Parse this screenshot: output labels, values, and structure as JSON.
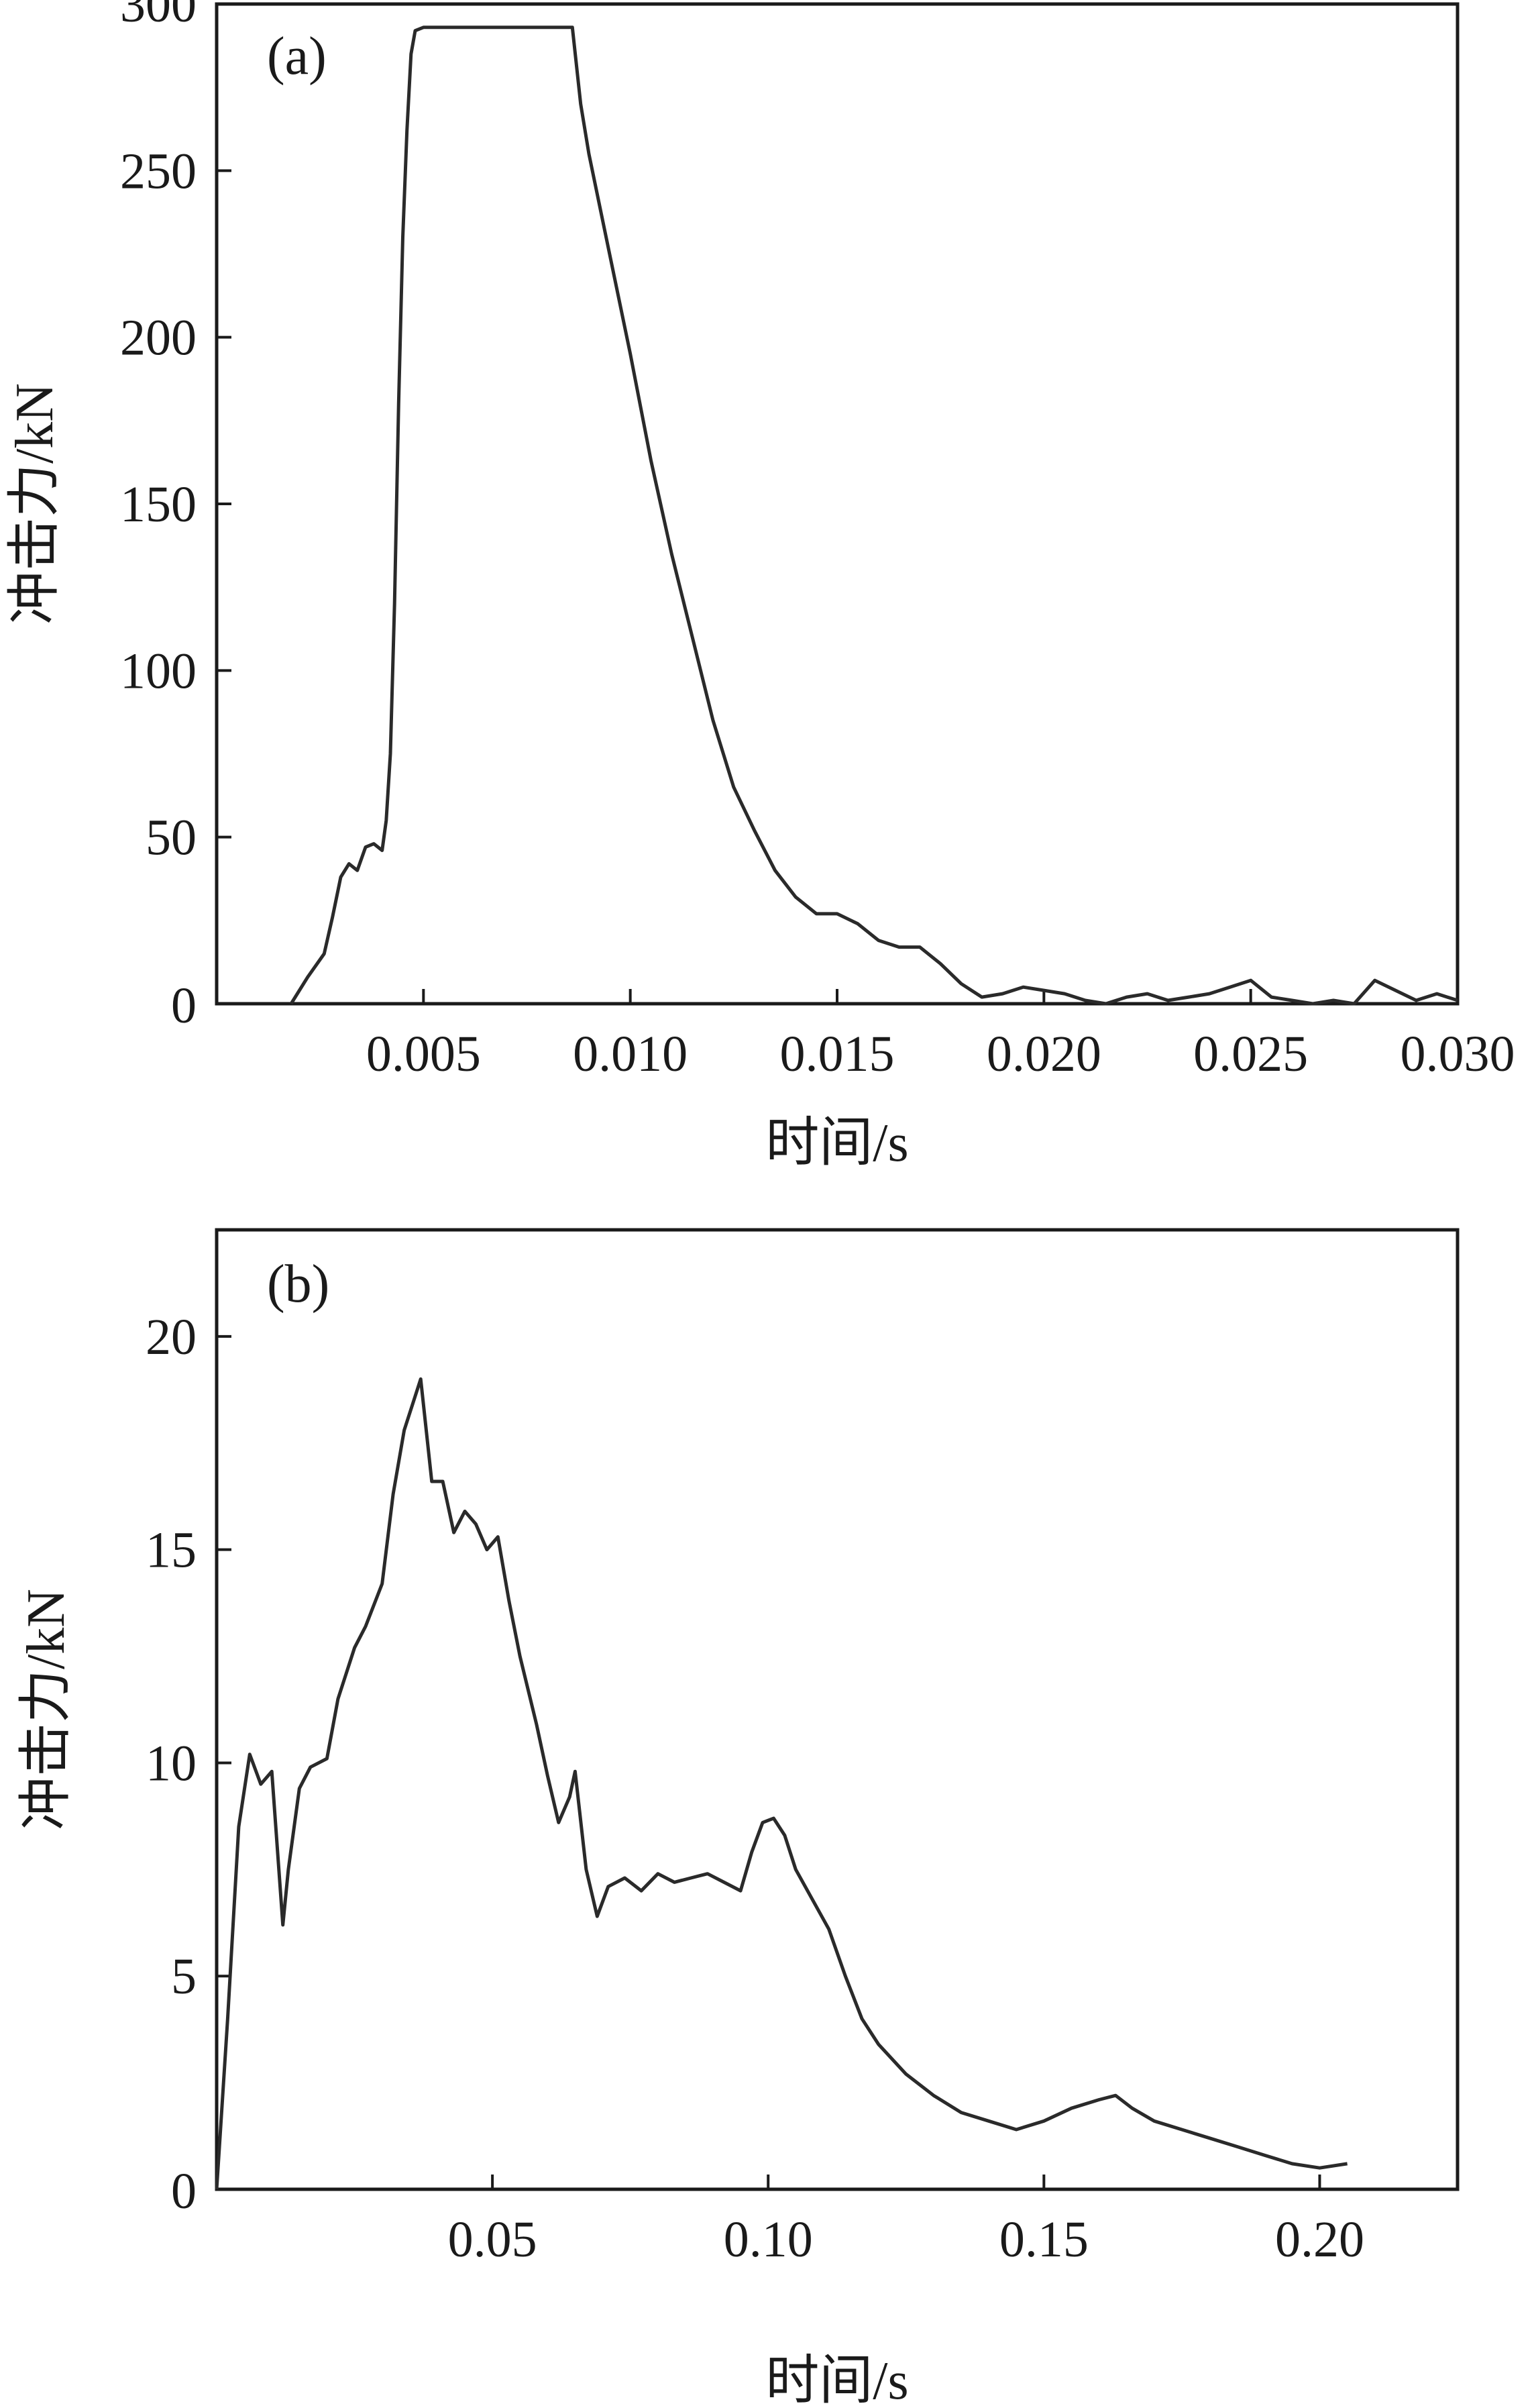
{
  "chart_data": [
    {
      "type": "line",
      "panel_label": "(a)",
      "title": "",
      "xlabel": "时间/s",
      "ylabel": "冲击力/kN",
      "xlim": [
        0,
        0.03
      ],
      "ylim": [
        0,
        300
      ],
      "x_ticks": [
        0.005,
        0.01,
        0.015,
        0.02,
        0.025,
        0.03
      ],
      "x_tick_labels": [
        "0.005",
        "0.010",
        "0.015",
        "0.020",
        "0.025",
        "0.030"
      ],
      "y_ticks": [
        0,
        50,
        100,
        150,
        200,
        250,
        300
      ],
      "y_tick_labels": [
        "0",
        "50",
        "100",
        "150",
        "200",
        "250",
        "300"
      ],
      "grid": false,
      "series": [
        {
          "x": [
            0.0018,
            0.0022,
            0.0026,
            0.0028,
            0.003,
            0.0032,
            0.0034,
            0.0036,
            0.0038,
            0.004,
            0.0041,
            0.0042,
            0.0043,
            0.0044,
            0.0045,
            0.0046,
            0.0047,
            0.0048,
            0.005,
            0.006,
            0.007,
            0.008,
            0.0086,
            0.0088,
            0.009,
            0.0095,
            0.01,
            0.0105,
            0.011,
            0.0115,
            0.012,
            0.0125,
            0.013,
            0.0135,
            0.014,
            0.0145,
            0.015,
            0.0155,
            0.016,
            0.0165,
            0.017,
            0.0175,
            0.018,
            0.0185,
            0.019,
            0.0195,
            0.02,
            0.0205,
            0.021,
            0.0215,
            0.022,
            0.0225,
            0.023,
            0.0235,
            0.024,
            0.0245,
            0.025,
            0.0255,
            0.026,
            0.0265,
            0.027,
            0.0275,
            0.028,
            0.0285,
            0.029,
            0.0295,
            0.03
          ],
          "y": [
            0,
            8,
            15,
            26,
            38,
            42,
            40,
            47,
            48,
            46,
            55,
            75,
            120,
            180,
            230,
            262,
            285,
            292,
            293,
            293,
            293,
            293,
            293,
            270,
            255,
            225,
            195,
            163,
            135,
            110,
            85,
            65,
            52,
            40,
            32,
            27,
            27,
            24,
            19,
            17,
            17,
            12,
            6,
            2,
            3,
            5,
            4,
            3,
            1,
            0,
            2,
            3,
            1,
            2,
            3,
            5,
            7,
            2,
            1,
            0,
            1,
            0,
            7,
            4,
            1,
            3,
            1
          ]
        }
      ]
    },
    {
      "type": "line",
      "panel_label": "(b)",
      "title": "",
      "xlabel": "时间/s",
      "ylabel": "冲击力/kN",
      "xlim": [
        0,
        0.225
      ],
      "ylim": [
        0,
        22.5
      ],
      "x_ticks": [
        0.05,
        0.1,
        0.15,
        0.2
      ],
      "x_tick_labels": [
        "0.05",
        "0.10",
        "0.15",
        "0.20"
      ],
      "y_ticks": [
        0,
        5,
        10,
        15,
        20
      ],
      "y_tick_labels": [
        "0",
        "5",
        "10",
        "15",
        "20"
      ],
      "grid": false,
      "series": [
        {
          "x": [
            0.0,
            0.002,
            0.004,
            0.006,
            0.008,
            0.01,
            0.012,
            0.013,
            0.015,
            0.017,
            0.02,
            0.022,
            0.025,
            0.027,
            0.03,
            0.032,
            0.034,
            0.036,
            0.037,
            0.039,
            0.041,
            0.043,
            0.045,
            0.047,
            0.049,
            0.051,
            0.053,
            0.055,
            0.058,
            0.06,
            0.062,
            0.064,
            0.065,
            0.067,
            0.069,
            0.071,
            0.074,
            0.077,
            0.08,
            0.083,
            0.086,
            0.089,
            0.092,
            0.095,
            0.097,
            0.099,
            0.101,
            0.103,
            0.105,
            0.108,
            0.111,
            0.114,
            0.117,
            0.12,
            0.125,
            0.13,
            0.135,
            0.14,
            0.145,
            0.15,
            0.155,
            0.16,
            0.163,
            0.166,
            0.17,
            0.175,
            0.18,
            0.185,
            0.19,
            0.195,
            0.2,
            0.205
          ],
          "y": [
            0,
            4,
            8.5,
            10.2,
            9.5,
            9.8,
            6.2,
            7.5,
            9.4,
            9.9,
            10.1,
            11.5,
            12.7,
            13.2,
            14.2,
            16.3,
            17.8,
            18.6,
            19.0,
            16.6,
            16.6,
            15.4,
            15.9,
            15.6,
            15.0,
            15.3,
            13.8,
            12.5,
            10.9,
            9.7,
            8.6,
            9.2,
            9.8,
            7.5,
            6.4,
            7.1,
            7.3,
            7.0,
            7.4,
            7.2,
            7.3,
            7.4,
            7.2,
            7.0,
            7.9,
            8.6,
            8.7,
            8.3,
            7.5,
            6.8,
            6.1,
            5.0,
            4.0,
            3.4,
            2.7,
            2.2,
            1.8,
            1.6,
            1.4,
            1.6,
            1.9,
            2.1,
            2.2,
            1.9,
            1.6,
            1.4,
            1.2,
            1.0,
            0.8,
            0.6,
            0.5,
            0.6
          ]
        }
      ]
    }
  ]
}
